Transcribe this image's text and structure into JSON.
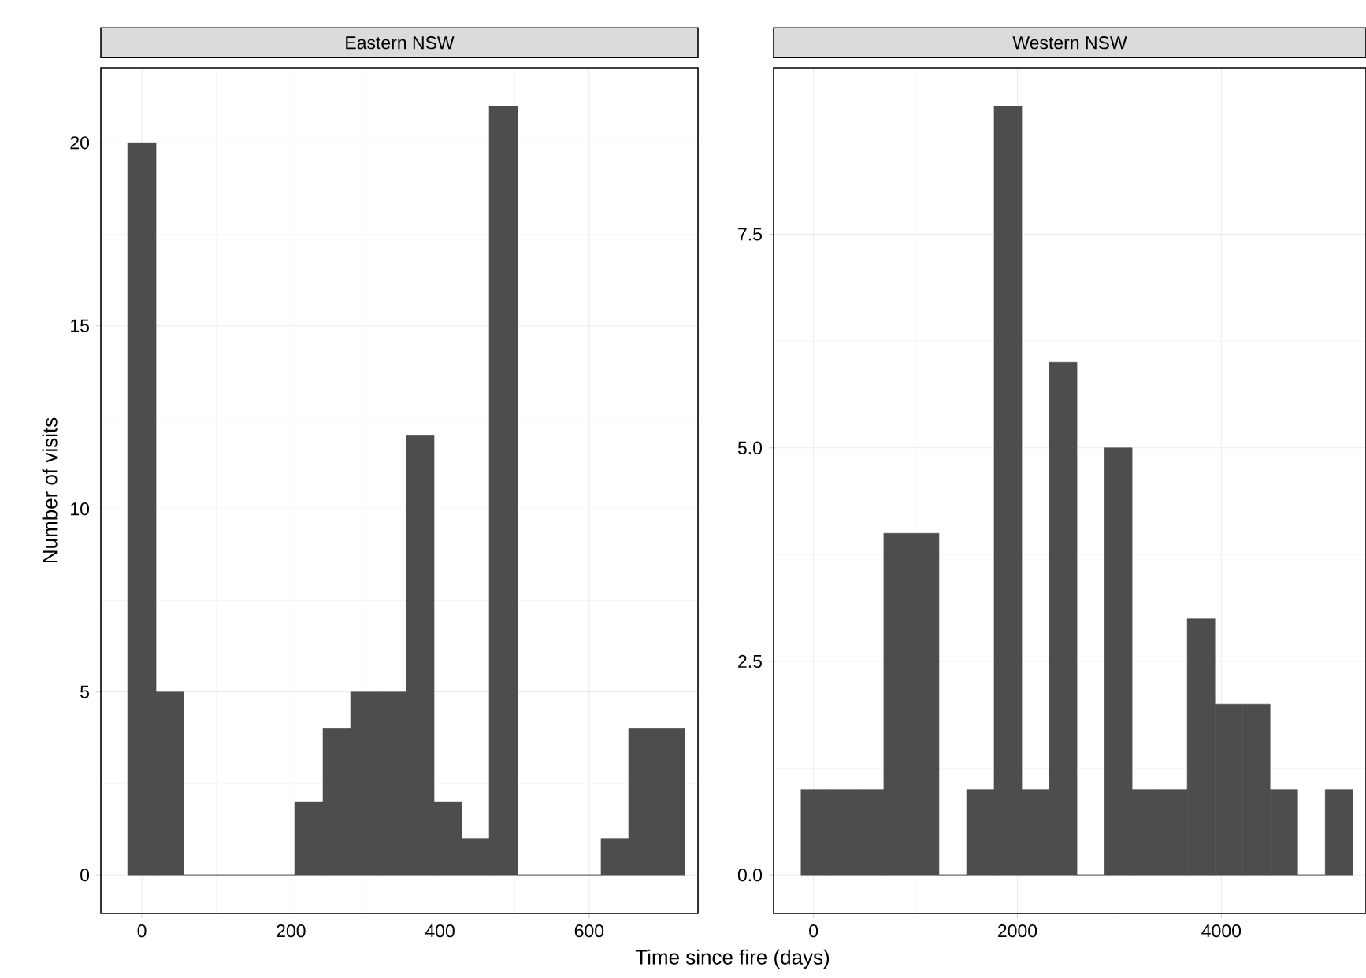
{
  "chart_data": [
    {
      "type": "histogram",
      "title": "Eastern NSW",
      "xlabel": "Time since fire (days)",
      "ylabel": "Number of visits",
      "color": "#4d4d4d",
      "grid": true,
      "bins": [
        -19,
        19,
        56,
        93,
        131,
        168,
        205,
        243,
        280,
        317,
        355,
        392,
        429,
        466,
        504,
        541,
        578,
        616,
        653,
        690,
        728
      ],
      "values": [
        20,
        5,
        0,
        0,
        0,
        0,
        2,
        4,
        5,
        5,
        12,
        2,
        1,
        21,
        0,
        0,
        0,
        1,
        4,
        4
      ],
      "xlim": [
        -55,
        746
      ],
      "ylim": [
        -1.05,
        22.05
      ],
      "xticks": [
        0,
        200,
        400,
        600
      ],
      "yticks": [
        0,
        5,
        10,
        15,
        20
      ]
    },
    {
      "type": "histogram",
      "title": "Western NSW",
      "color": "#4d4d4d",
      "grid": true,
      "bins": [
        -122,
        149,
        419,
        690,
        960,
        1231,
        1502,
        1772,
        2043,
        2313,
        2584,
        2855,
        3125,
        3396,
        3666,
        3937,
        4208,
        4478,
        4749,
        5019,
        5290
      ],
      "values": [
        1,
        1,
        1,
        4,
        4,
        0,
        1,
        9,
        1,
        6,
        0,
        5,
        1,
        1,
        3,
        2,
        2,
        1,
        0,
        1
      ],
      "xlim": [
        -391,
        5419
      ],
      "ylim": [
        -0.45,
        9.45
      ],
      "xticks": [
        0,
        2000,
        4000
      ],
      "yticks": [
        {
          "value": 0,
          "label": "0.0"
        },
        {
          "value": 2.5,
          "label": "2.5"
        },
        {
          "value": 5,
          "label": "5.0"
        },
        {
          "value": 7.5,
          "label": "7.5"
        }
      ]
    }
  ]
}
